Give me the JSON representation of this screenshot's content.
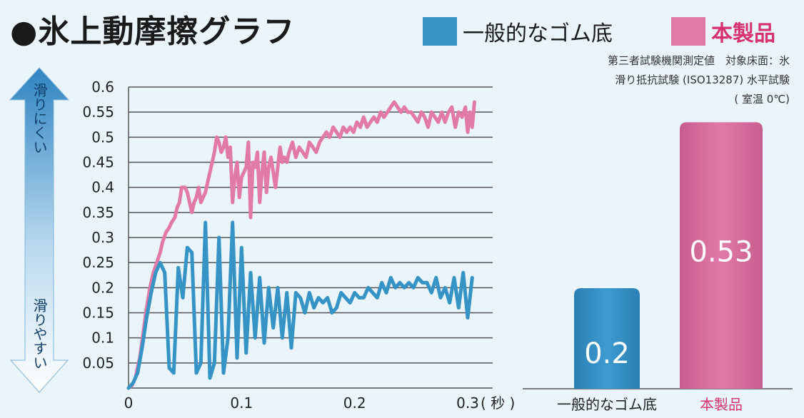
{
  "title": "●氷上動摩擦グラフ",
  "legend": [
    {
      "label": "一般的なゴム底",
      "color": "#3593c6"
    },
    {
      "label": "本製品",
      "color": "#e27aa8"
    }
  ],
  "note": {
    "line1": "第三者試験機関測定値　対象床面：氷",
    "line2": "滑り抵抗試験 (ISO13287) 水平試験",
    "line3": "( 室温 0℃)"
  },
  "arrow": {
    "top_label": "滑りにくい",
    "bottom_label": "滑りやすい"
  },
  "chart_data": [
    {
      "type": "line",
      "x_ticks": [
        "0",
        "0.1",
        "0.2",
        "0.3"
      ],
      "x_unit": "( 秒 )",
      "xlim": [
        0,
        0.3
      ],
      "y_ticks": [
        "0.6",
        "0.55",
        "0.5",
        "0.45",
        "0.4",
        "0.35",
        "0.3",
        "0.25",
        "0.2",
        "0.15",
        "0.1",
        "0.05"
      ],
      "ylim": [
        0,
        0.6
      ],
      "grid": true,
      "series": [
        {
          "name": "本製品",
          "color": "#e27aa8",
          "x": [
            0,
            0.003,
            0.006,
            0.01,
            0.013,
            0.016,
            0.019,
            0.022,
            0.025,
            0.028,
            0.03,
            0.033,
            0.036,
            0.038,
            0.041,
            0.043,
            0.045,
            0.047,
            0.05,
            0.052,
            0.054,
            0.056,
            0.058,
            0.06,
            0.062,
            0.064,
            0.066,
            0.068,
            0.07,
            0.072,
            0.074,
            0.076,
            0.078,
            0.08,
            0.082,
            0.084,
            0.086,
            0.088,
            0.09,
            0.092,
            0.094,
            0.096,
            0.098,
            0.1,
            0.102,
            0.104,
            0.106,
            0.108,
            0.11,
            0.112,
            0.114,
            0.116,
            0.118,
            0.12,
            0.122,
            0.124,
            0.126,
            0.128,
            0.13,
            0.132,
            0.134,
            0.136,
            0.138,
            0.14,
            0.142,
            0.145,
            0.148,
            0.151,
            0.154,
            0.157,
            0.16,
            0.163,
            0.166,
            0.169,
            0.172,
            0.175,
            0.178,
            0.181,
            0.184,
            0.187,
            0.19,
            0.193,
            0.196,
            0.199,
            0.202,
            0.205,
            0.208,
            0.211,
            0.214,
            0.217,
            0.22,
            0.223,
            0.226,
            0.229,
            0.232,
            0.235,
            0.238,
            0.241,
            0.244,
            0.247,
            0.25,
            0.253,
            0.256,
            0.259,
            0.262,
            0.265,
            0.268,
            0.271,
            0.274,
            0.277,
            0.28,
            0.283,
            0.286,
            0.289,
            0.292,
            0.295,
            0.298,
            0.3,
            0.302,
            0.304,
            0.306
          ],
          "y": [
            0,
            0.005,
            0.02,
            0.06,
            0.11,
            0.16,
            0.2,
            0.23,
            0.25,
            0.27,
            0.29,
            0.31,
            0.32,
            0.33,
            0.34,
            0.36,
            0.37,
            0.4,
            0.4,
            0.39,
            0.37,
            0.35,
            0.37,
            0.38,
            0.4,
            0.37,
            0.38,
            0.39,
            0.41,
            0.43,
            0.45,
            0.47,
            0.5,
            0.49,
            0.47,
            0.48,
            0.5,
            0.46,
            0.48,
            0.37,
            0.42,
            0.45,
            0.38,
            0.42,
            0.43,
            0.44,
            0.49,
            0.34,
            0.45,
            0.44,
            0.47,
            0.37,
            0.43,
            0.47,
            0.39,
            0.44,
            0.46,
            0.43,
            0.4,
            0.44,
            0.48,
            0.45,
            0.46,
            0.45,
            0.47,
            0.49,
            0.46,
            0.48,
            0.47,
            0.46,
            0.49,
            0.48,
            0.47,
            0.49,
            0.5,
            0.51,
            0.5,
            0.52,
            0.51,
            0.5,
            0.52,
            0.51,
            0.52,
            0.51,
            0.53,
            0.52,
            0.54,
            0.52,
            0.53,
            0.54,
            0.53,
            0.55,
            0.54,
            0.55,
            0.56,
            0.57,
            0.56,
            0.55,
            0.56,
            0.55,
            0.55,
            0.54,
            0.53,
            0.55,
            0.54,
            0.52,
            0.55,
            0.54,
            0.53,
            0.55,
            0.53,
            0.55,
            0.56,
            0.52,
            0.55,
            0.54,
            0.56,
            0.51,
            0.55,
            0.52,
            0.57
          ]
        },
        {
          "name": "一般的なゴム底",
          "color": "#3593c6",
          "x": [
            0,
            0.004,
            0.008,
            0.012,
            0.016,
            0.02,
            0.024,
            0.028,
            0.032,
            0.036,
            0.04,
            0.044,
            0.048,
            0.052,
            0.056,
            0.06,
            0.064,
            0.068,
            0.072,
            0.076,
            0.08,
            0.084,
            0.088,
            0.092,
            0.096,
            0.1,
            0.104,
            0.108,
            0.112,
            0.116,
            0.12,
            0.124,
            0.128,
            0.132,
            0.136,
            0.14,
            0.144,
            0.148,
            0.152,
            0.156,
            0.16,
            0.164,
            0.168,
            0.172,
            0.176,
            0.18,
            0.184,
            0.188,
            0.192,
            0.196,
            0.2,
            0.204,
            0.208,
            0.212,
            0.216,
            0.22,
            0.224,
            0.228,
            0.232,
            0.236,
            0.24,
            0.244,
            0.248,
            0.252,
            0.256,
            0.26,
            0.264,
            0.268,
            0.272,
            0.276,
            0.28,
            0.284,
            0.288,
            0.292,
            0.296,
            0.3,
            0.304
          ],
          "y": [
            0,
            0.01,
            0.03,
            0.08,
            0.14,
            0.19,
            0.23,
            0.25,
            0.23,
            0.04,
            0.03,
            0.24,
            0.18,
            0.28,
            0.27,
            0.03,
            0.05,
            0.33,
            0.02,
            0.05,
            0.3,
            0.03,
            0.1,
            0.33,
            0.06,
            0.28,
            0.07,
            0.23,
            0.1,
            0.22,
            0.09,
            0.2,
            0.12,
            0.2,
            0.1,
            0.19,
            0.08,
            0.19,
            0.18,
            0.15,
            0.19,
            0.16,
            0.18,
            0.17,
            0.18,
            0.15,
            0.16,
            0.19,
            0.18,
            0.17,
            0.19,
            0.18,
            0.18,
            0.2,
            0.19,
            0.18,
            0.21,
            0.19,
            0.22,
            0.2,
            0.21,
            0.2,
            0.21,
            0.2,
            0.22,
            0.21,
            0.21,
            0.19,
            0.22,
            0.18,
            0.2,
            0.17,
            0.22,
            0.16,
            0.23,
            0.14,
            0.22
          ]
        }
      ]
    },
    {
      "type": "bar",
      "categories": [
        "一般的なゴム底",
        "本製品"
      ],
      "values": [
        0.2,
        0.53
      ],
      "value_labels": [
        "0.2",
        "0.53"
      ],
      "colors": [
        "#3593c6",
        "#d66d9e"
      ],
      "ylim": [
        0,
        0.6
      ]
    }
  ]
}
